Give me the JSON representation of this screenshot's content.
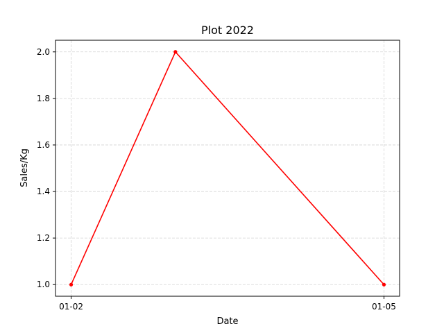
{
  "chart_data": {
    "type": "line",
    "title": "Plot 2022",
    "xlabel": "Date",
    "ylabel": "Sales/Kg",
    "x": [
      "01-02",
      "01-03",
      "01-05"
    ],
    "x_tick_labels": [
      "01-02",
      "01-05"
    ],
    "series": [
      {
        "values": [
          1.0,
          2.0,
          1.0
        ],
        "color": "#ff0000",
        "marker": "dot"
      }
    ],
    "ylim": [
      0.95,
      2.05
    ],
    "y_ticks": [
      "1.0",
      "1.2",
      "1.4",
      "1.6",
      "1.8",
      "2.0"
    ],
    "grid": true,
    "grid_color": "#d3d3d3",
    "legend": "none"
  }
}
